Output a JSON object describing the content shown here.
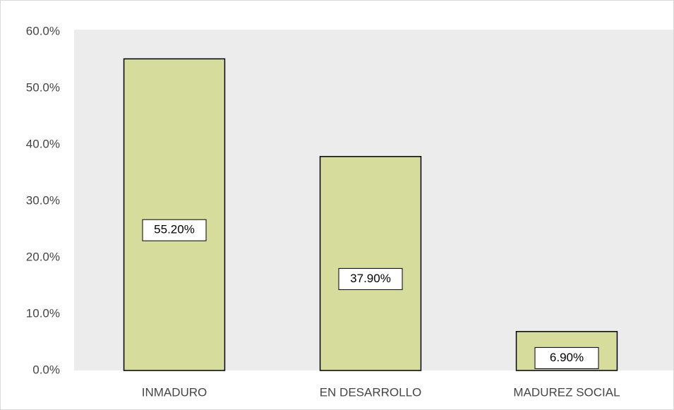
{
  "chart_data": {
    "type": "bar",
    "categories": [
      "INMADURO",
      "EN DESARROLLO",
      "MADUREZ SOCIAL"
    ],
    "values": [
      55.2,
      37.9,
      6.9
    ],
    "value_labels": [
      "55.20%",
      "37.90%",
      "6.90%"
    ],
    "color": "#d6dc9c",
    "ylim": [
      0,
      60
    ],
    "yticks": [
      {
        "value": 0,
        "label": "0.0%"
      },
      {
        "value": 10,
        "label": "10.0%"
      },
      {
        "value": 20,
        "label": "20.0%"
      },
      {
        "value": 30,
        "label": "30.0%"
      },
      {
        "value": 40,
        "label": "40.0%"
      },
      {
        "value": 50,
        "label": "50.0%"
      },
      {
        "value": 60,
        "label": "60.0%"
      }
    ],
    "grid": false
  }
}
